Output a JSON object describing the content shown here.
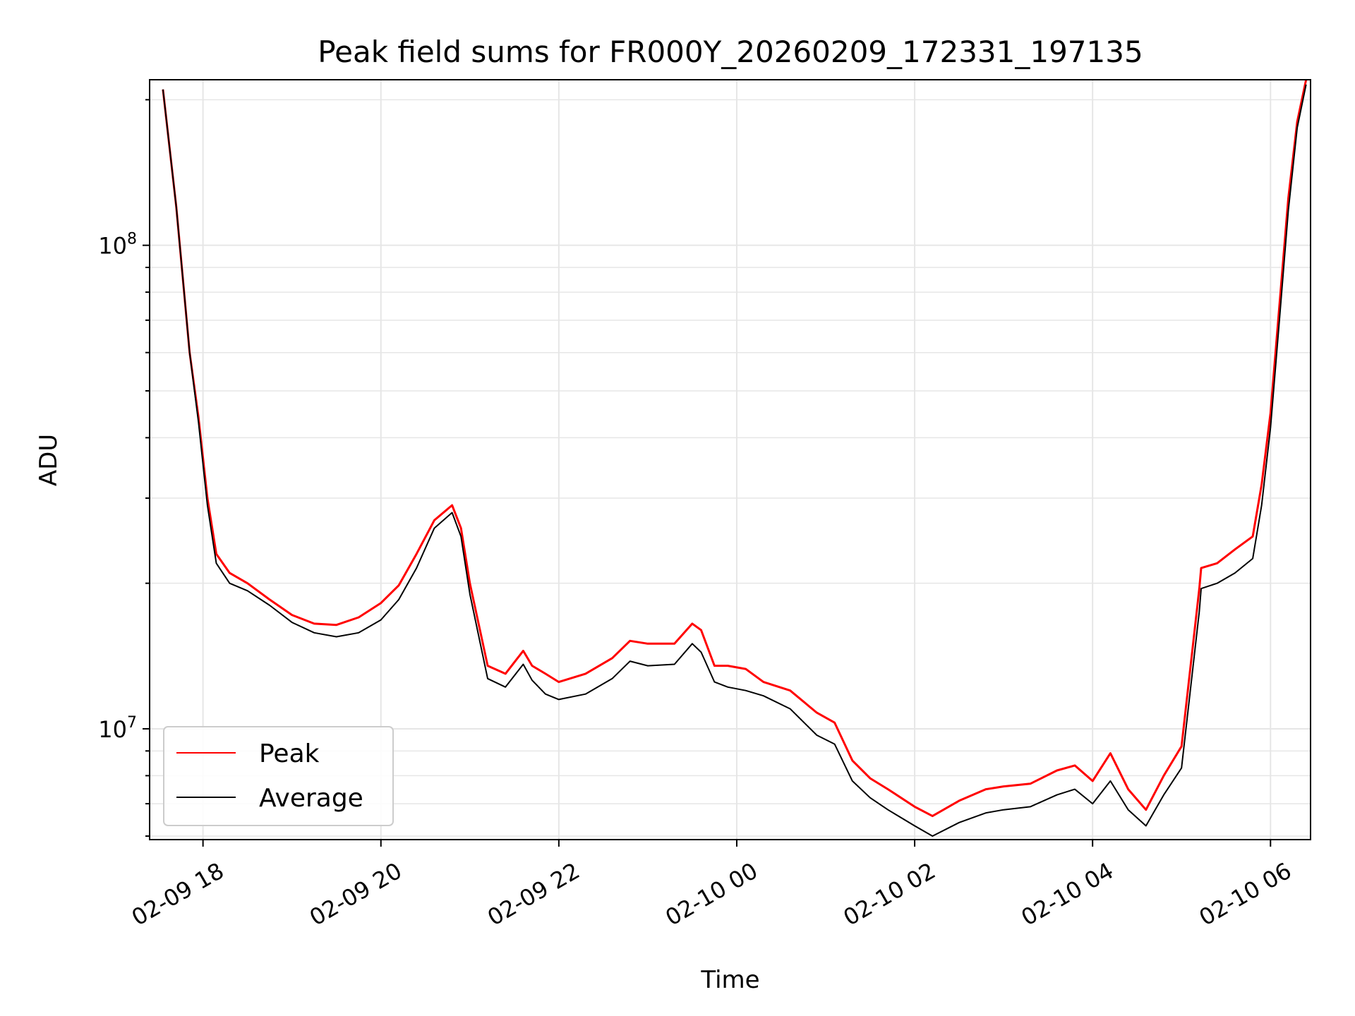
{
  "chart_data": {
    "type": "line",
    "title": "Peak field sums for FR000Y_20260209_172331_197135",
    "xlabel": "Time",
    "ylabel": "ADU",
    "yscale": "log",
    "ylim": [
      5900000.0,
      220000000.0
    ],
    "xlim_hours": [
      17.4,
      30.45
    ],
    "x_ticks": [
      {
        "hour": 18,
        "label": "02-09 18"
      },
      {
        "hour": 20,
        "label": "02-09 20"
      },
      {
        "hour": 22,
        "label": "02-09 22"
      },
      {
        "hour": 24,
        "label": "02-10 00"
      },
      {
        "hour": 26,
        "label": "02-10 02"
      },
      {
        "hour": 28,
        "label": "02-10 04"
      },
      {
        "hour": 30,
        "label": "02-10 06"
      }
    ],
    "y_ticks": [
      {
        "value": 10000000,
        "base": "10",
        "exp": "7"
      },
      {
        "value": 100000000,
        "base": "10",
        "exp": "8"
      }
    ],
    "grid": true,
    "legend_position": "lower-left",
    "series": [
      {
        "name": "Peak",
        "color": "#ff0000",
        "hours": [
          17.55,
          17.7,
          17.85,
          17.95,
          18.05,
          18.15,
          18.3,
          18.5,
          18.75,
          19.0,
          19.25,
          19.5,
          19.75,
          20.0,
          20.2,
          20.4,
          20.6,
          20.8,
          20.9,
          21.0,
          21.2,
          21.4,
          21.6,
          21.7,
          21.85,
          22.0,
          22.3,
          22.6,
          22.8,
          23.0,
          23.3,
          23.5,
          23.6,
          23.75,
          23.9,
          24.1,
          24.3,
          24.6,
          24.9,
          25.1,
          25.3,
          25.5,
          25.7,
          26.0,
          26.2,
          26.5,
          26.8,
          27.0,
          27.3,
          27.6,
          27.8,
          28.0,
          28.2,
          28.4,
          28.6,
          28.8,
          29.0,
          29.2,
          29.22,
          29.4,
          29.6,
          29.8,
          29.9,
          30.0,
          30.1,
          30.2,
          30.3,
          30.4
        ],
        "values": [
          210000000,
          120000000,
          60000000,
          44000000,
          30000000,
          23000000,
          21000000,
          20000000,
          18500000,
          17200000,
          16500000,
          16400000,
          17000000,
          18200000,
          19800000,
          23000000,
          27000000,
          29000000,
          26000000,
          20000000,
          13500000,
          13000000,
          14500000,
          13500000,
          13000000,
          12500000,
          13000000,
          14000000,
          15200000,
          15000000,
          15000000,
          16500000,
          16000000,
          13500000,
          13500000,
          13300000,
          12500000,
          12000000,
          10800000,
          10300000,
          8600000,
          7900000,
          7500000,
          6900000,
          6600000,
          7100000,
          7500000,
          7600000,
          7700000,
          8200000,
          8400000,
          7800000,
          8900000,
          7500000,
          6800000,
          8000000,
          9200000,
          19500000,
          21500000,
          22000000,
          23500000,
          25000000,
          32000000,
          45000000,
          75000000,
          125000000,
          180000000,
          220000000
        ]
      },
      {
        "name": "Average",
        "color": "#000000",
        "hours": [
          17.55,
          17.7,
          17.85,
          17.95,
          18.05,
          18.15,
          18.3,
          18.5,
          18.75,
          19.0,
          19.25,
          19.5,
          19.75,
          20.0,
          20.2,
          20.4,
          20.6,
          20.8,
          20.9,
          21.0,
          21.2,
          21.4,
          21.6,
          21.7,
          21.85,
          22.0,
          22.3,
          22.6,
          22.8,
          23.0,
          23.3,
          23.5,
          23.6,
          23.75,
          23.9,
          24.1,
          24.3,
          24.6,
          24.9,
          25.1,
          25.3,
          25.5,
          25.7,
          26.0,
          26.2,
          26.5,
          26.8,
          27.0,
          27.3,
          27.6,
          27.8,
          28.0,
          28.2,
          28.4,
          28.6,
          28.8,
          29.0,
          29.2,
          29.22,
          29.4,
          29.6,
          29.8,
          29.9,
          30.0,
          30.1,
          30.2,
          30.3,
          30.4
        ],
        "values": [
          210000000,
          120000000,
          60000000,
          43000000,
          29000000,
          22000000,
          20000000,
          19300000,
          18000000,
          16600000,
          15800000,
          15500000,
          15800000,
          16800000,
          18500000,
          21500000,
          26000000,
          28000000,
          25000000,
          19000000,
          12700000,
          12200000,
          13600000,
          12600000,
          11800000,
          11500000,
          11800000,
          12700000,
          13800000,
          13500000,
          13600000,
          15000000,
          14400000,
          12500000,
          12200000,
          12000000,
          11700000,
          11000000,
          9700000,
          9300000,
          7800000,
          7200000,
          6800000,
          6300000,
          6000000,
          6400000,
          6700000,
          6800000,
          6900000,
          7300000,
          7500000,
          7000000,
          7800000,
          6800000,
          6300000,
          7300000,
          8300000,
          17500000,
          19500000,
          20000000,
          21000000,
          22500000,
          29000000,
          42000000,
          70000000,
          118000000,
          175000000,
          215000000
        ]
      }
    ]
  }
}
